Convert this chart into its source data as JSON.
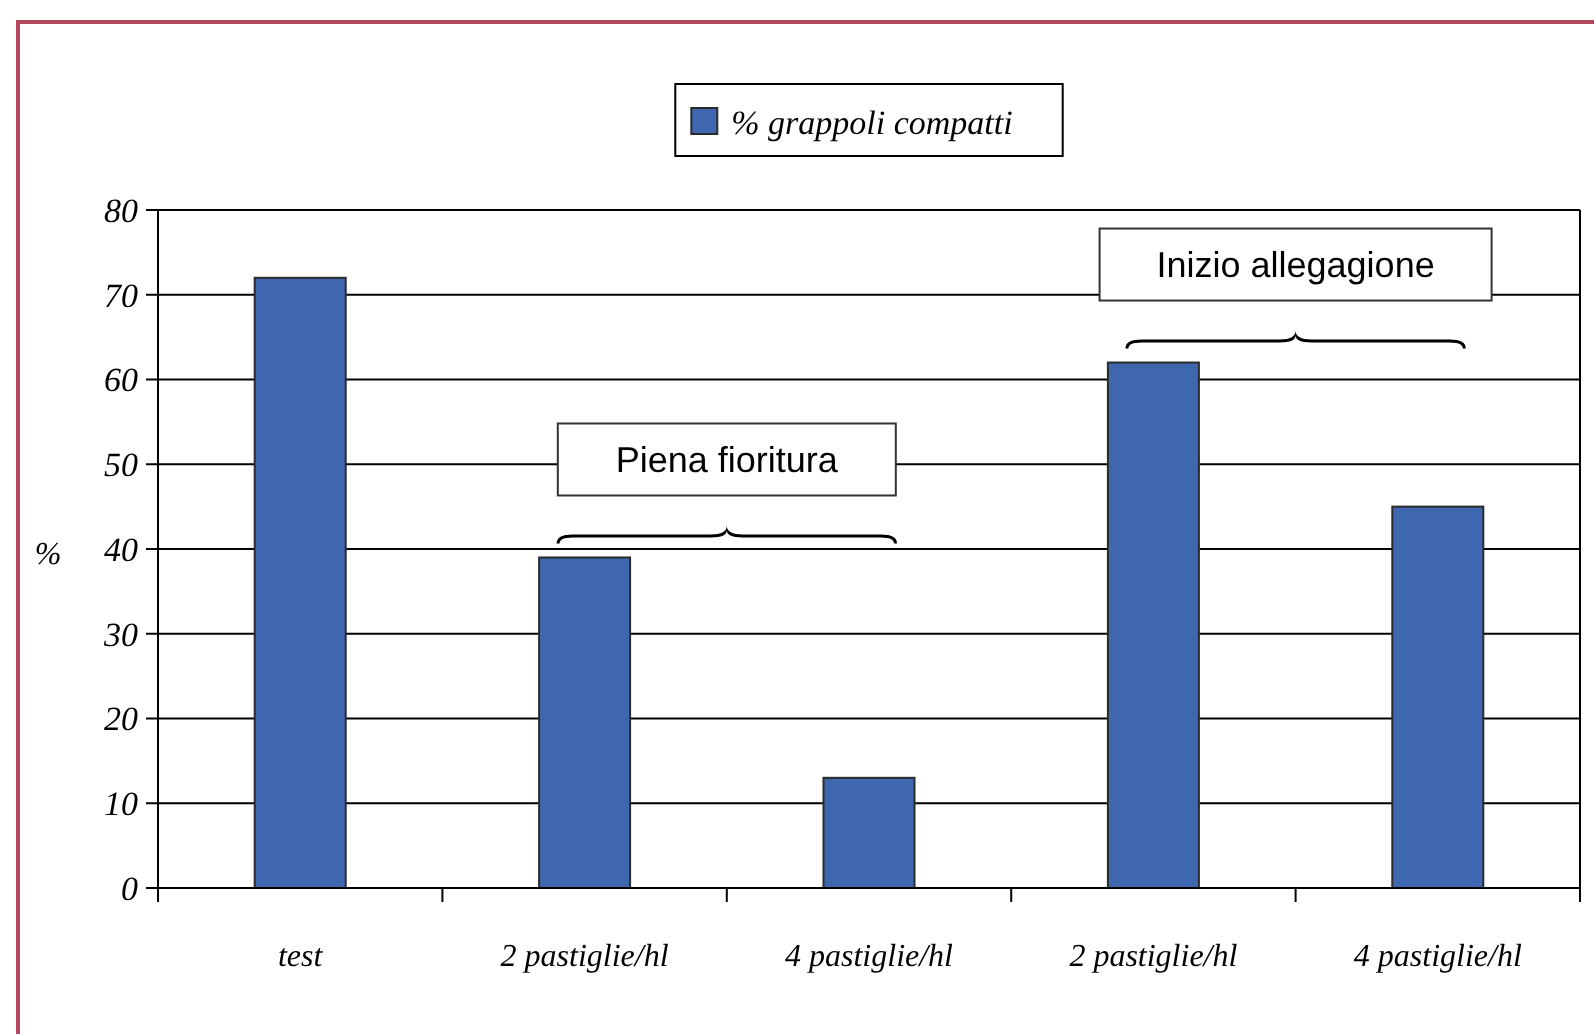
{
  "chart_data": {
    "type": "bar",
    "categories": [
      "test",
      "2 pastiglie/hl",
      "4 pastiglie/hl",
      "2 pastiglie/hl",
      "4 pastiglie/hl"
    ],
    "series": [
      {
        "name": "% grappoli compatti",
        "color": "#3f67b0",
        "values": [
          72,
          39,
          13,
          62,
          45
        ]
      }
    ],
    "ylabel": "%",
    "ylim": [
      0,
      80
    ],
    "yticks": [
      0,
      10,
      20,
      30,
      40,
      50,
      60,
      70,
      80
    ],
    "grid": "y",
    "legend": "top",
    "annotations": [
      "Piena fioritura",
      "Inizio allegagione"
    ]
  }
}
